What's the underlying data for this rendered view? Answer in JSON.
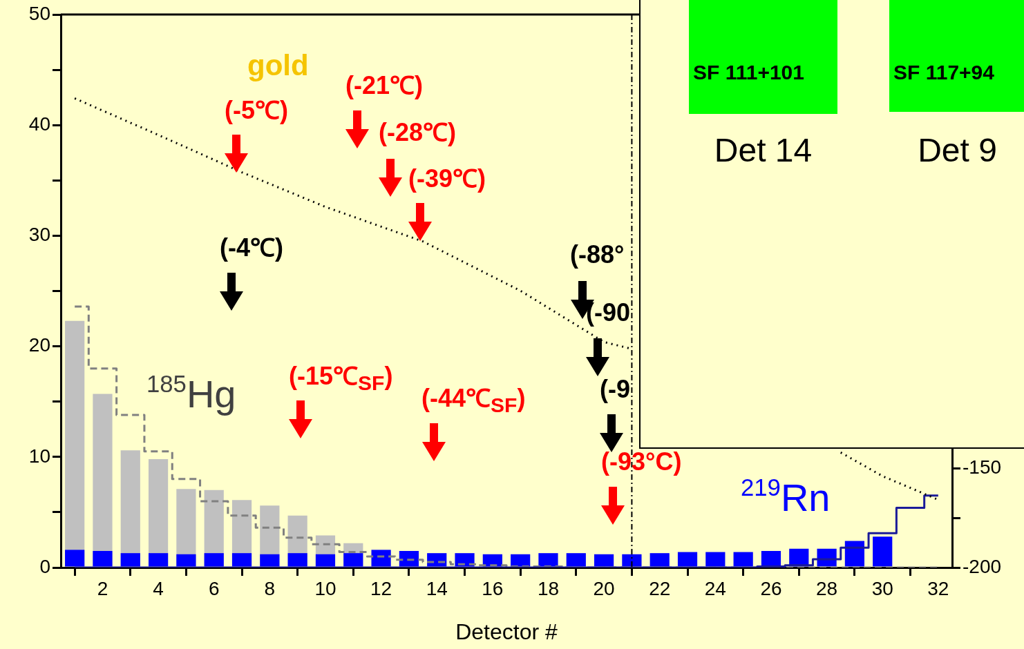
{
  "chart_data": [
    {
      "type": "bar",
      "xlabel": "Detector #",
      "x": [
        1,
        2,
        3,
        4,
        5,
        6,
        7,
        8,
        9,
        10,
        11,
        12,
        13,
        14,
        15,
        16,
        17,
        18,
        19,
        20,
        21,
        22,
        23,
        24,
        25,
        26,
        27,
        28,
        29,
        30,
        31,
        32
      ],
      "series": [
        {
          "name": "$^{185}$Hg",
          "color": "#c0c0c0",
          "values": [
            22.3,
            15.7,
            10.6,
            9.8,
            7.1,
            7.0,
            6.1,
            5.6,
            4.7,
            2.9,
            2.2,
            null,
            null,
            null,
            null,
            null,
            null,
            null,
            null,
            null,
            null,
            null,
            null,
            null,
            null,
            null,
            null,
            null,
            null,
            null,
            null,
            null
          ]
        },
        {
          "name": "$^{219}$Rn",
          "color": "#0000ff",
          "values": [
            1.6,
            1.5,
            1.3,
            1.3,
            1.2,
            1.3,
            1.3,
            1.2,
            1.3,
            1.2,
            1.3,
            1.6,
            1.5,
            1.3,
            1.3,
            1.2,
            1.2,
            1.3,
            1.3,
            1.2,
            1.2,
            1.3,
            1.4,
            1.4,
            1.4,
            1.5,
            1.7,
            1.7,
            2.4,
            2.8,
            null,
            null
          ]
        },
        {
          "type": "step",
          "color": "#808080",
          "line_style": "dashed",
          "values": [
            23.6,
            18.0,
            13.8,
            10.5,
            8.0,
            6.0,
            4.7,
            3.6,
            2.7,
            2.1,
            1.4,
            1.0,
            0.7,
            0.5,
            0.3,
            0.2,
            0.1,
            0.1,
            0,
            0,
            0,
            0,
            0,
            0,
            0,
            0,
            0,
            0,
            0,
            0,
            0,
            0
          ]
        },
        {
          "type": "step",
          "color": "#1a1a99",
          "line_style": "solid",
          "values": [
            0,
            0,
            0,
            0,
            0,
            0,
            0,
            0,
            0,
            0,
            0,
            0,
            0,
            0,
            0,
            0,
            0,
            0,
            0,
            0,
            0,
            0,
            0,
            0,
            0,
            0.1,
            0.2,
            0.75,
            1.8,
            3.1,
            5.4,
            6.5
          ]
        },
        {
          "type": "line",
          "axis": "y2",
          "color": "#000000",
          "line_style": "dotted",
          "x": [
            1,
            4,
            7,
            10,
            13.5,
            17,
            20,
            21,
            25,
            28.5,
            30,
            31,
            32
          ],
          "values": [
            36.1,
            17.7,
            -1.1,
            -18.5,
            -35.9,
            -60.7,
            -86.5,
            -90,
            null,
            -142.1,
            -154,
            -159.9,
            -165.9
          ]
        }
      ],
      "xlim": [
        0.5,
        32.5
      ],
      "xticks": [
        2,
        4,
        6,
        8,
        10,
        12,
        14,
        16,
        18,
        20,
        22,
        24,
        26,
        28,
        30,
        32
      ],
      "ylim": [
        0,
        50
      ],
      "yticks": [
        0,
        {
          "value": 5,
          "label": null
        },
        10,
        {
          "value": 15,
          "label": null
        },
        20,
        {
          "value": 25,
          "label": null
        },
        30,
        {
          "value": 35,
          "label": null
        },
        40,
        {
          "value": 45,
          "label": null
        },
        50
      ],
      "y2lim": [
        -200,
        78.3
      ],
      "y2ticks": [
        -200,
        {
          "value": -175,
          "label": null
        },
        -150
      ],
      "ref_lines": [
        {
          "axis": "x",
          "value": 21,
          "label": null,
          "color": "#000000",
          "line_style": "dashed"
        }
      ],
      "annotations": [
        "gold",
        {
          "text": "(-5℃)",
          "x": 6.8,
          "y": 35.7
        },
        "(-21℃)",
        "(-28℃)",
        {
          "text": "(-39℃)",
          "x": 13.4,
          "y": 29.5
        },
        "(-4℃)",
        "(-15℃$_{SF}$)",
        "(-44℃$_{SF}$)",
        "(-88°",
        "(-90",
        "(-9",
        "(-93°C)"
      ],
      "grid": false,
      "legend": false,
      "marker": "none"
    },
    {
      "type": "other",
      "annotations": [
        "SF 111+101",
        "Det 14",
        "SF 117+94",
        "Det 9"
      ]
    }
  ]
}
